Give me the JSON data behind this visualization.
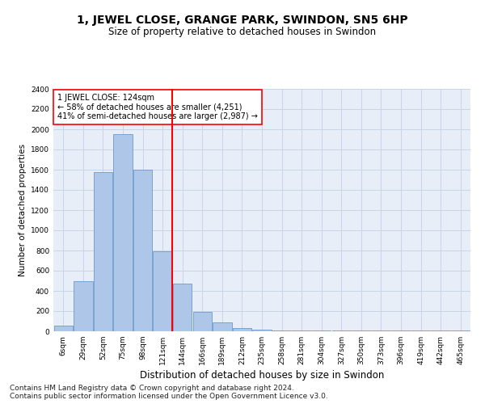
{
  "title": "1, JEWEL CLOSE, GRANGE PARK, SWINDON, SN5 6HP",
  "subtitle": "Size of property relative to detached houses in Swindon",
  "xlabel": "Distribution of detached houses by size in Swindon",
  "ylabel": "Number of detached properties",
  "categories": [
    "6sqm",
    "29sqm",
    "52sqm",
    "75sqm",
    "98sqm",
    "121sqm",
    "144sqm",
    "166sqm",
    "189sqm",
    "212sqm",
    "235sqm",
    "258sqm",
    "281sqm",
    "304sqm",
    "327sqm",
    "350sqm",
    "373sqm",
    "396sqm",
    "419sqm",
    "442sqm",
    "465sqm"
  ],
  "values": [
    60,
    500,
    1580,
    1950,
    1600,
    790,
    470,
    195,
    85,
    30,
    20,
    5,
    5,
    5,
    5,
    5,
    5,
    5,
    5,
    5,
    5
  ],
  "bar_color": "#aec6e8",
  "bar_edge_color": "#5b8dc8",
  "vline_x_index": 5,
  "vline_color": "red",
  "annotation_text": "1 JEWEL CLOSE: 124sqm\n← 58% of detached houses are smaller (4,251)\n41% of semi-detached houses are larger (2,987) →",
  "annotation_box_color": "white",
  "annotation_box_edge": "red",
  "ylim": [
    0,
    2400
  ],
  "yticks": [
    0,
    200,
    400,
    600,
    800,
    1000,
    1200,
    1400,
    1600,
    1800,
    2000,
    2200,
    2400
  ],
  "grid_color": "#c8d4e8",
  "bg_color": "#e8eef8",
  "footer1": "Contains HM Land Registry data © Crown copyright and database right 2024.",
  "footer2": "Contains public sector information licensed under the Open Government Licence v3.0.",
  "title_fontsize": 10,
  "subtitle_fontsize": 8.5,
  "xlabel_fontsize": 8.5,
  "ylabel_fontsize": 7.5,
  "tick_fontsize": 6.5,
  "footer_fontsize": 6.5,
  "annotation_fontsize": 7
}
